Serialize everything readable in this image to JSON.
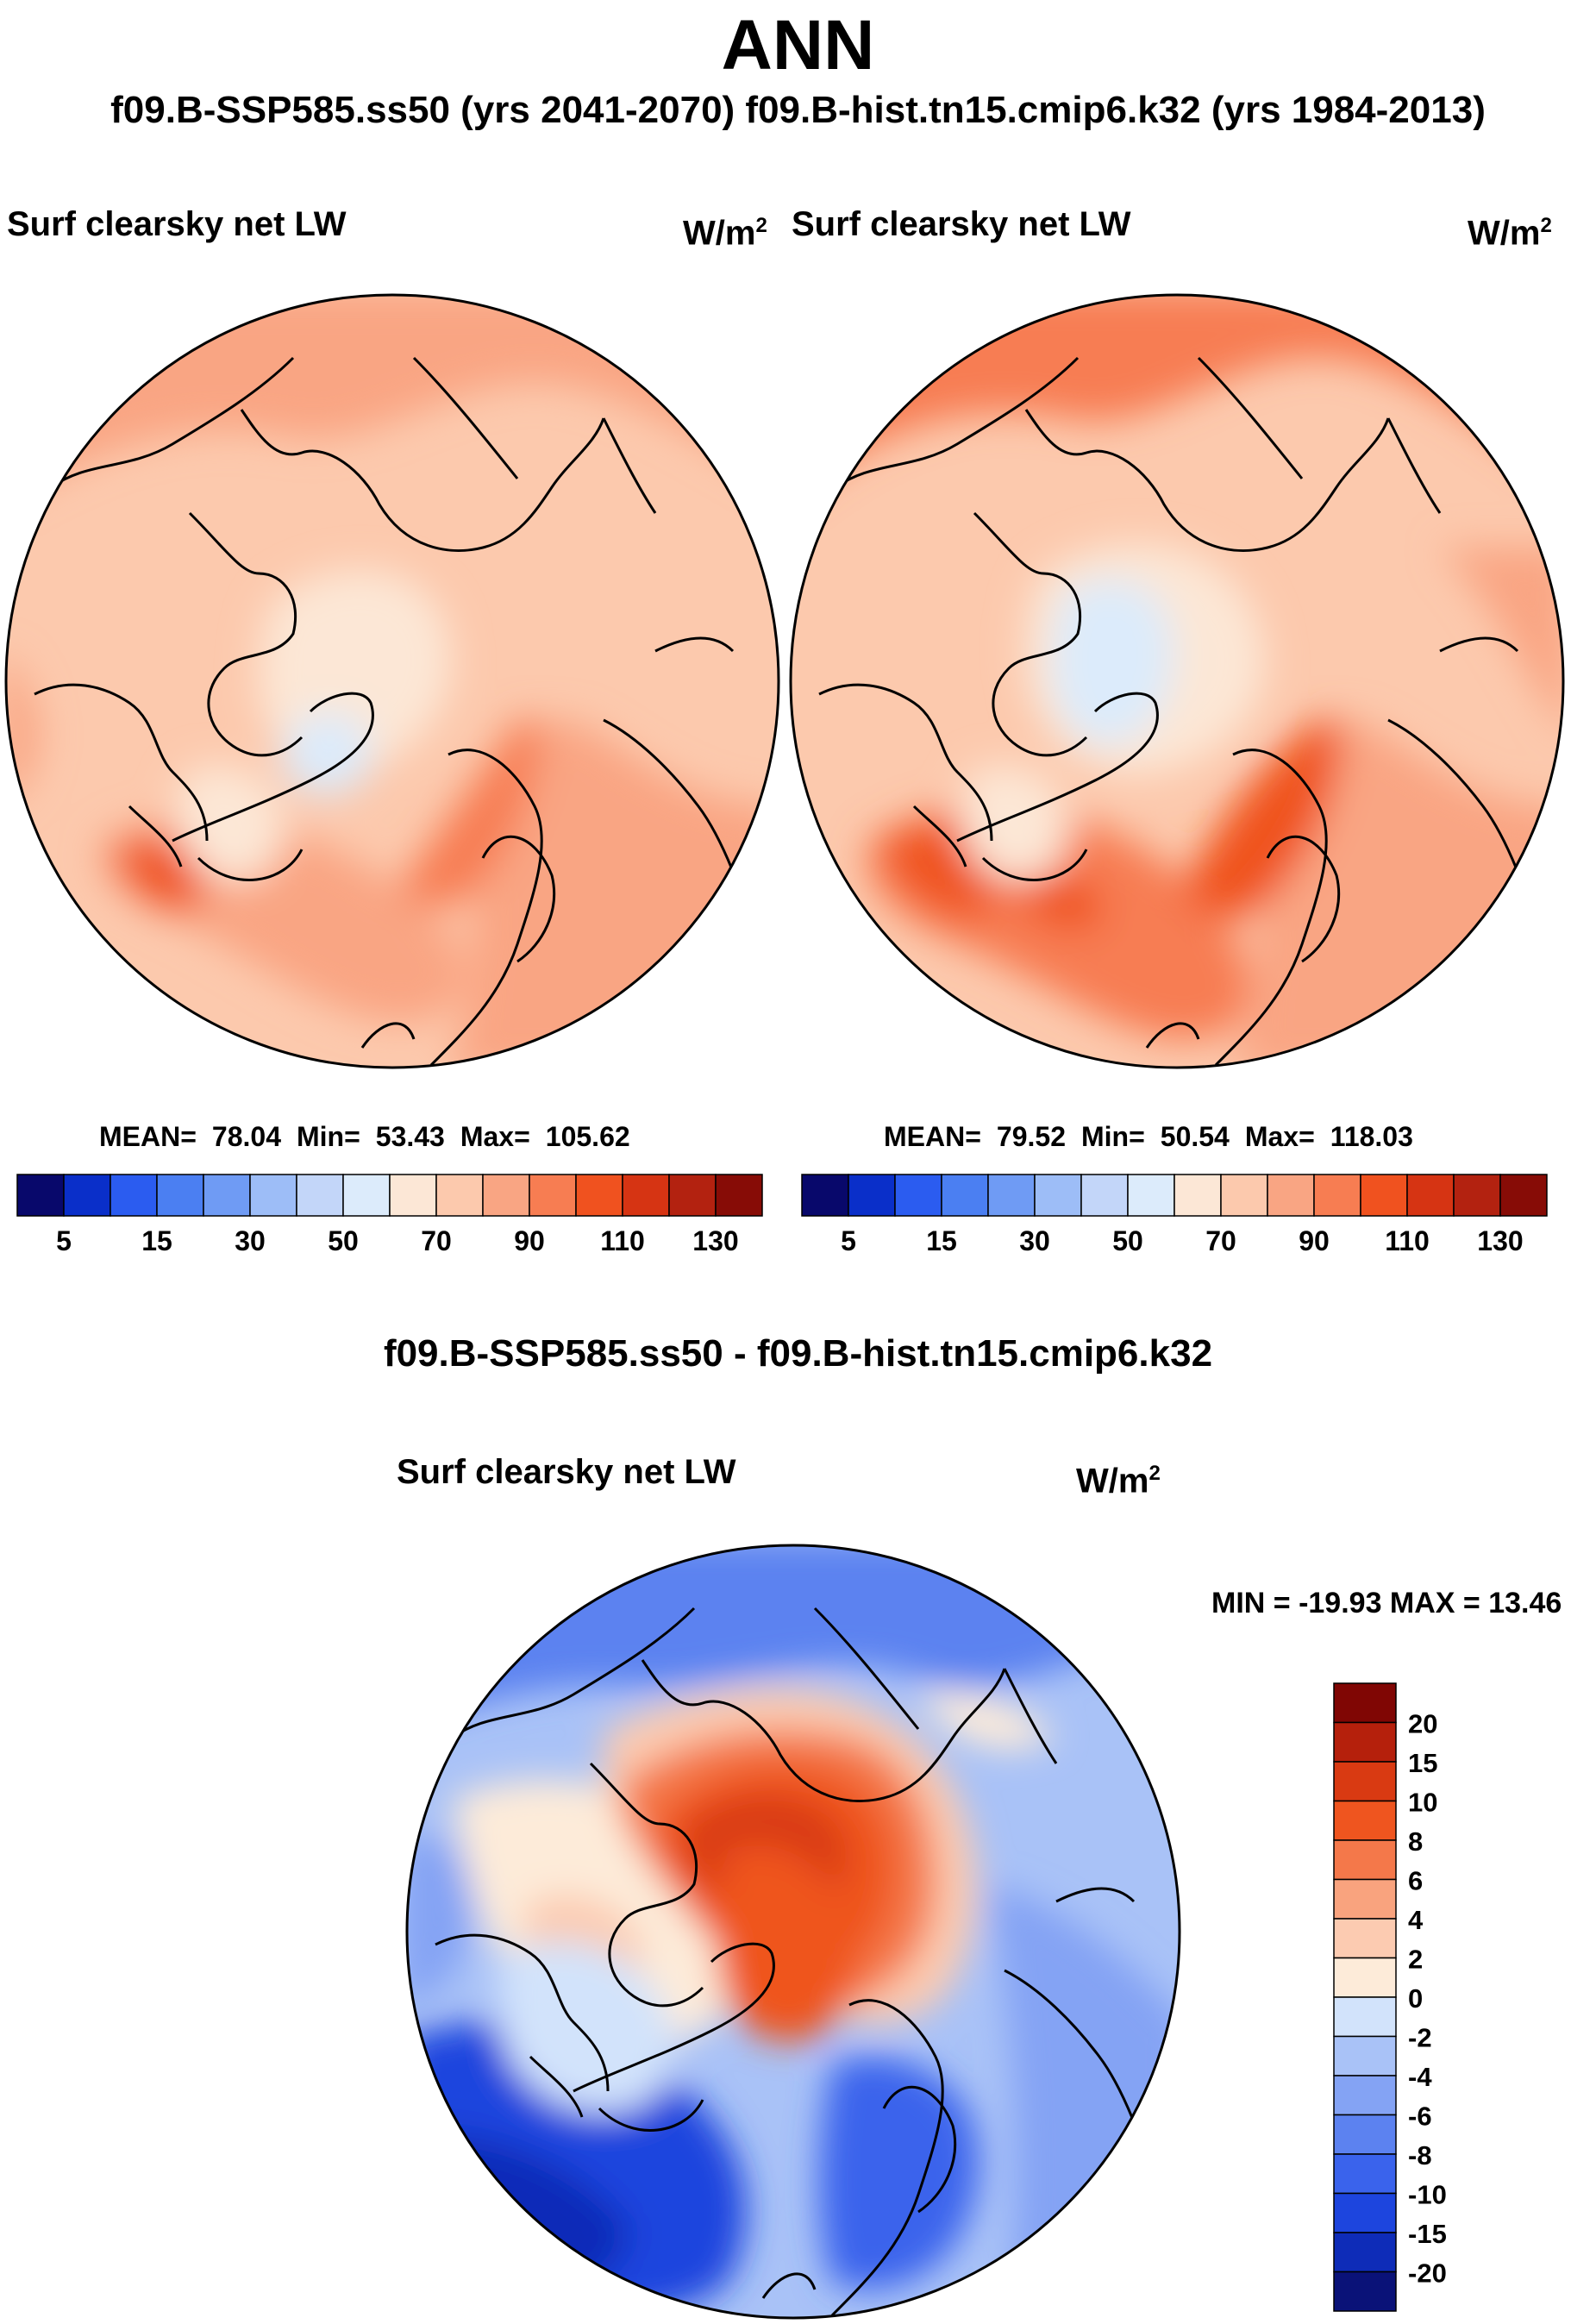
{
  "header": {
    "title": "ANN",
    "subtitle": "f09.B-SSP585.ss50 (yrs 2041-2070)  f09.B-hist.tn15.cmip6.k32 (yrs 1984-2013)"
  },
  "colors": {
    "abs_scale": [
      "#08086b",
      "#0a2fc9",
      "#2b5cf0",
      "#4b7ff2",
      "#6f9bf4",
      "#9dbdf7",
      "#c3d6f9",
      "#dcebfb",
      "#fce7d6",
      "#fcc9ad",
      "#f9a583",
      "#f77d52",
      "#f0521f",
      "#d63413",
      "#b32210",
      "#870c06"
    ],
    "diff_scale": [
      "#0a1278",
      "#0e2cb8",
      "#1d45de",
      "#3a63ec",
      "#5c82f0",
      "#84a3f4",
      "#a9c2f7",
      "#d2e3fb",
      "#fdebd9",
      "#fccbb1",
      "#f9a37e",
      "#f4784a",
      "#ef551f",
      "#d93a12",
      "#b5200c",
      "#800604"
    ]
  },
  "chart_data": [
    {
      "type": "heatmap",
      "name": "left-panel",
      "title": "Surf clearsky net LW",
      "units": "W/m",
      "units_sup": "2",
      "stats": {
        "mean_label": "MEAN=",
        "mean": "78.04",
        "min_label": "Min=",
        "min": "53.43",
        "max_label": "Max=",
        "max": "105.62"
      },
      "colorbar_ticks": [
        "5",
        "15",
        "30",
        "50",
        "70",
        "90",
        "110",
        "130"
      ]
    },
    {
      "type": "heatmap",
      "name": "right-panel",
      "title": "Surf clearsky net LW",
      "units": "W/m",
      "units_sup": "2",
      "stats": {
        "mean_label": "MEAN=",
        "mean": "79.52",
        "min_label": "Min=",
        "min": "50.54",
        "max_label": "Max=",
        "max": "118.03"
      },
      "colorbar_ticks": [
        "5",
        "15",
        "30",
        "50",
        "70",
        "90",
        "110",
        "130"
      ]
    },
    {
      "type": "heatmap",
      "name": "difference-panel",
      "heading": "f09.B-SSP585.ss50 - f09.B-hist.tn15.cmip6.k32",
      "title": "Surf clearsky net LW",
      "units": "W/m",
      "units_sup": "2",
      "minmax": "MIN = -19.93 MAX =  13.46",
      "colorbar_ticks": [
        "20",
        "15",
        "10",
        "8",
        "6",
        "4",
        "2",
        "0",
        "-2",
        "-4",
        "-6",
        "-8",
        "-10",
        "-15",
        "-20"
      ]
    }
  ]
}
